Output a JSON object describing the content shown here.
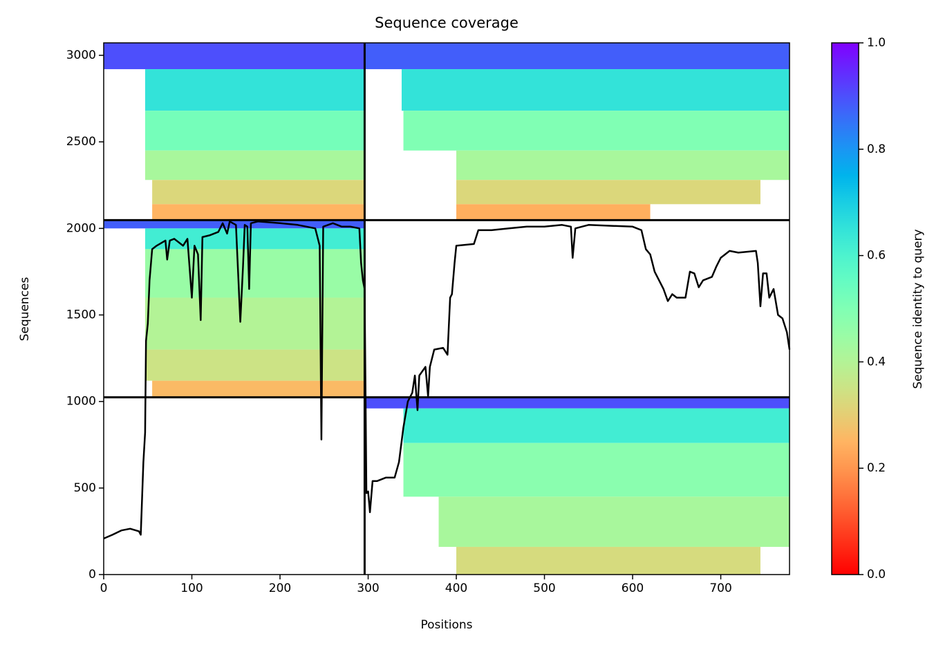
{
  "chart_data": {
    "type": "coverage",
    "title": "Sequence coverage",
    "xlabel": "Positions",
    "ylabel": "Sequences",
    "xlim": [
      0,
      778
    ],
    "ylim": [
      0,
      3072
    ],
    "xticks": [
      0,
      100,
      200,
      300,
      400,
      500,
      600,
      700
    ],
    "yticks": [
      0,
      500,
      1000,
      1500,
      2000,
      2500,
      3000
    ],
    "dividers_x": [
      296
    ],
    "dividers_y": [
      1024,
      2048
    ],
    "colorbar": {
      "label": "Sequence identity to query",
      "lim": [
        0,
        1
      ],
      "ticks": [
        {
          "value": 0,
          "label": "0.0"
        },
        0.2,
        0.4,
        0.6,
        0.8,
        {
          "value": 1,
          "label": "1.0"
        }
      ]
    },
    "bands": [
      {
        "x0": 0,
        "x1": 296,
        "y0": 2920,
        "y1": 3072,
        "identity": 0.9
      },
      {
        "x0": 47,
        "x1": 296,
        "y0": 2680,
        "y1": 2920,
        "identity": 0.65
      },
      {
        "x0": 47,
        "x1": 296,
        "y0": 2450,
        "y1": 2680,
        "identity": 0.52
      },
      {
        "x0": 47,
        "x1": 296,
        "y0": 2280,
        "y1": 2450,
        "identity": 0.42
      },
      {
        "x0": 55,
        "x1": 296,
        "y0": 2140,
        "y1": 2280,
        "identity": 0.32
      },
      {
        "x0": 55,
        "x1": 296,
        "y0": 2048,
        "y1": 2140,
        "identity": 0.25
      },
      {
        "x0": 296,
        "x1": 778,
        "y0": 2920,
        "y1": 3072,
        "identity": 0.88
      },
      {
        "x0": 338,
        "x1": 778,
        "y0": 2680,
        "y1": 2920,
        "identity": 0.65
      },
      {
        "x0": 340,
        "x1": 778,
        "y0": 2450,
        "y1": 2680,
        "identity": 0.5
      },
      {
        "x0": 400,
        "x1": 778,
        "y0": 2280,
        "y1": 2450,
        "identity": 0.42
      },
      {
        "x0": 400,
        "x1": 745,
        "y0": 2140,
        "y1": 2280,
        "identity": 0.32
      },
      {
        "x0": 400,
        "x1": 620,
        "y0": 2048,
        "y1": 2140,
        "identity": 0.24
      },
      {
        "x0": 0,
        "x1": 296,
        "y0": 2000,
        "y1": 2048,
        "identity": 0.88
      },
      {
        "x0": 47,
        "x1": 296,
        "y0": 1880,
        "y1": 2000,
        "identity": 0.62
      },
      {
        "x0": 47,
        "x1": 296,
        "y0": 1600,
        "y1": 1880,
        "identity": 0.45
      },
      {
        "x0": 47,
        "x1": 296,
        "y0": 1300,
        "y1": 1600,
        "identity": 0.4
      },
      {
        "x0": 47,
        "x1": 296,
        "y0": 1120,
        "y1": 1300,
        "identity": 0.35
      },
      {
        "x0": 55,
        "x1": 296,
        "y0": 1024,
        "y1": 1120,
        "identity": 0.26
      },
      {
        "x0": 296,
        "x1": 778,
        "y0": 960,
        "y1": 1024,
        "identity": 0.9
      },
      {
        "x0": 340,
        "x1": 778,
        "y0": 760,
        "y1": 960,
        "identity": 0.62
      },
      {
        "x0": 340,
        "x1": 778,
        "y0": 450,
        "y1": 760,
        "identity": 0.48
      },
      {
        "x0": 380,
        "x1": 778,
        "y0": 160,
        "y1": 450,
        "identity": 0.42
      },
      {
        "x0": 400,
        "x1": 745,
        "y0": 0,
        "y1": 160,
        "identity": 0.33
      }
    ],
    "coverage": {
      "color": "#000000",
      "x": [
        0,
        10,
        20,
        30,
        40,
        42,
        45,
        47,
        48,
        50,
        52,
        55,
        60,
        70,
        72,
        75,
        80,
        90,
        95,
        100,
        103,
        107,
        110,
        112,
        120,
        130,
        135,
        140,
        143,
        150,
        155,
        158,
        160,
        163,
        165,
        167,
        175,
        200,
        220,
        240,
        245,
        247,
        249,
        260,
        270,
        280,
        290,
        292,
        294,
        296,
        298,
        300,
        302,
        305,
        310,
        320,
        330,
        335,
        340,
        345,
        350,
        353,
        356,
        358,
        365,
        368,
        370,
        375,
        385,
        390,
        393,
        395,
        398,
        400,
        420,
        425,
        440,
        460,
        480,
        500,
        520,
        530,
        532,
        535,
        550,
        600,
        610,
        615,
        620,
        625,
        635,
        640,
        645,
        650,
        660,
        665,
        670,
        675,
        680,
        690,
        695,
        700,
        710,
        720,
        740,
        742,
        745,
        748,
        752,
        755,
        760,
        765,
        770,
        775,
        778
      ],
      "values": [
        208,
        230,
        255,
        265,
        250,
        230,
        650,
        820,
        1350,
        1450,
        1700,
        1880,
        1900,
        1930,
        1820,
        1930,
        1940,
        1900,
        1940,
        1600,
        1900,
        1850,
        1470,
        1950,
        1960,
        1980,
        2030,
        1970,
        2040,
        2020,
        1460,
        1780,
        2020,
        2010,
        1650,
        2030,
        2040,
        2030,
        2020,
        2000,
        1900,
        780,
        2010,
        2030,
        2010,
        2010,
        2000,
        1800,
        1700,
        1650,
        470,
        480,
        360,
        540,
        540,
        560,
        560,
        650,
        850,
        1000,
        1050,
        1150,
        950,
        1150,
        1200,
        1030,
        1200,
        1300,
        1310,
        1270,
        1600,
        1620,
        1800,
        1900,
        1910,
        1990,
        1990,
        2000,
        2010,
        2010,
        2020,
        2010,
        1830,
        2000,
        2020,
        2010,
        1990,
        1880,
        1850,
        1750,
        1650,
        1580,
        1620,
        1600,
        1600,
        1750,
        1740,
        1660,
        1700,
        1720,
        1780,
        1830,
        1870,
        1860,
        1870,
        1800,
        1550,
        1740,
        1740,
        1600,
        1650,
        1500,
        1480,
        1400,
        1300
      ]
    }
  }
}
